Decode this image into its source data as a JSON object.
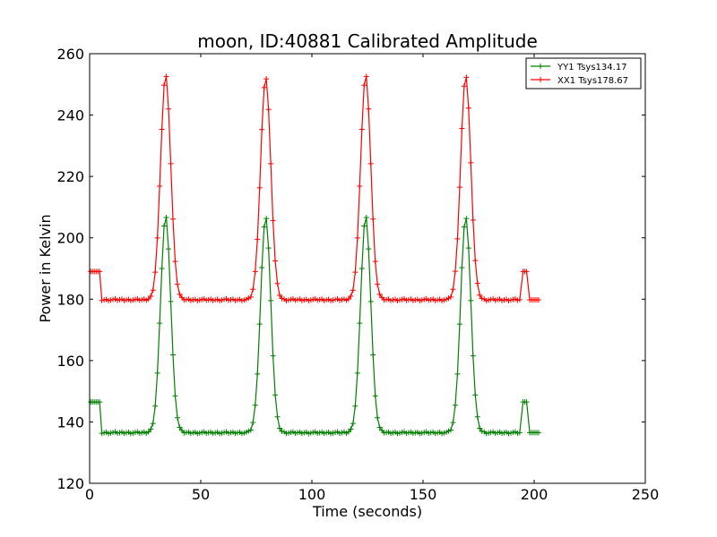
{
  "chart_data": {
    "type": "line",
    "title": "moon, ID:40881 Calibrated Amplitude",
    "xlabel": "Time (seconds)",
    "ylabel": "Power in Kelvin",
    "xlim": [
      0,
      250
    ],
    "ylim": [
      120,
      260
    ],
    "xticks": [
      0,
      50,
      100,
      150,
      200,
      250
    ],
    "yticks": [
      120,
      140,
      160,
      180,
      200,
      220,
      240,
      260
    ],
    "grid": false,
    "legend_position": "top-right",
    "marker": "plus",
    "series": [
      {
        "name": "YY1 Tsys134.17",
        "color": "#008000",
        "baseline": 136.5,
        "segments": [
          {
            "x_start": 0.5,
            "x_end": 4.5,
            "y": 146.5
          },
          {
            "x_start": 195,
            "x_end": 197,
            "y": 146.5
          },
          {
            "x_start": 198,
            "x_end": 202,
            "y": 136.5
          }
        ],
        "peaks": [
          {
            "x": 34.2,
            "y": 207
          },
          {
            "x": 79.2,
            "y": 207
          },
          {
            "x": 124.2,
            "y": 207
          },
          {
            "x": 169.2,
            "y": 207
          }
        ],
        "x_range": [
          0.5,
          202
        ]
      },
      {
        "name": "XX1 Tsys178.67",
        "color": "#ff0000",
        "baseline": 179.8,
        "segments": [
          {
            "x_start": 0.5,
            "x_end": 4.5,
            "y": 189
          },
          {
            "x_start": 195,
            "x_end": 197,
            "y": 189
          },
          {
            "x_start": 198,
            "x_end": 202,
            "y": 179.8
          }
        ],
        "peaks": [
          {
            "x": 34.2,
            "y": 253
          },
          {
            "x": 79.2,
            "y": 252.5
          },
          {
            "x": 124.2,
            "y": 253
          },
          {
            "x": 169.2,
            "y": 253
          }
        ],
        "x_range": [
          0.5,
          202
        ]
      }
    ]
  }
}
